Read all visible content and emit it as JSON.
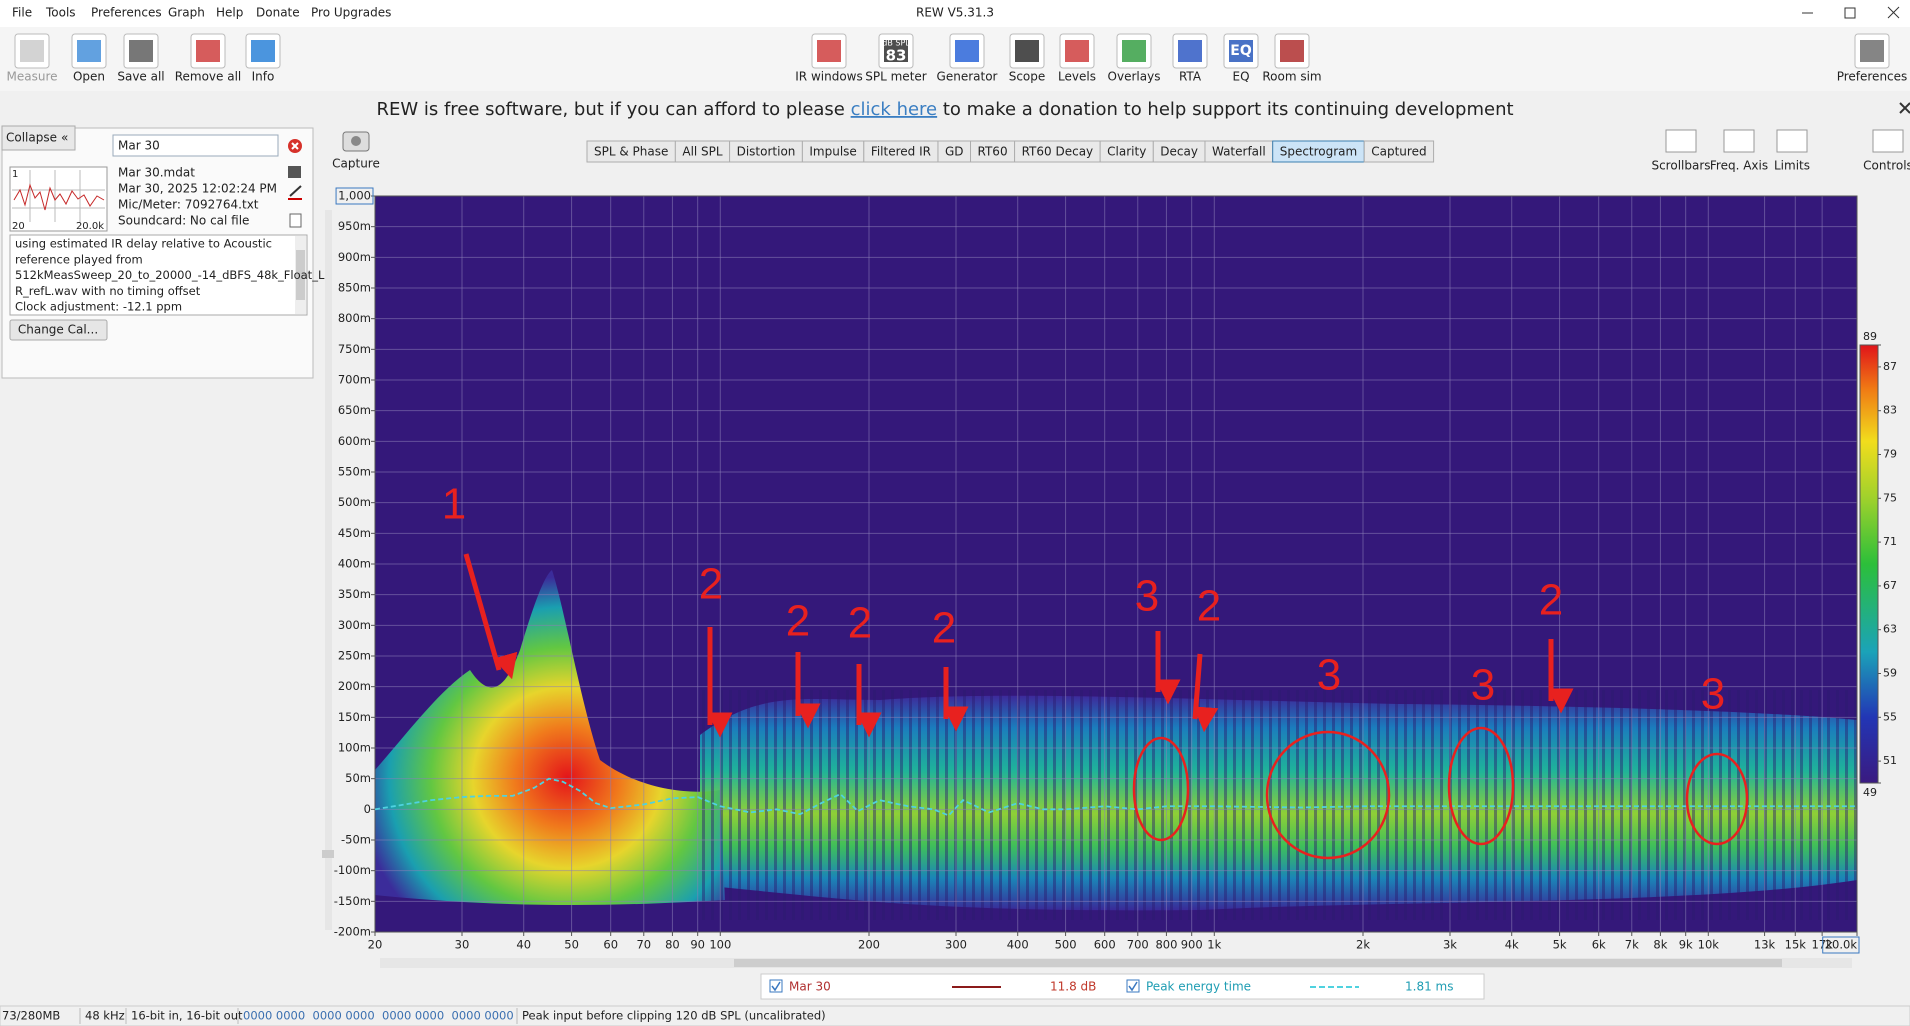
{
  "title_bar": {
    "title": "REW V5.31.3"
  },
  "menu": [
    "File",
    "Tools",
    "Preferences",
    "Graph",
    "Help",
    "Donate",
    "Pro Upgrades"
  ],
  "toolbar": {
    "left": [
      "Measure",
      "Open",
      "Save all",
      "Remove all",
      "Info"
    ],
    "center": [
      "IR windows",
      "SPL meter",
      "Generator",
      "Scope",
      "Levels",
      "Overlays",
      "RTA",
      "EQ",
      "Room sim"
    ],
    "right": [
      "Preferences"
    ],
    "spl_icon_unit": "dB SPL",
    "spl_icon_value": "83",
    "eq_icon": "EQ"
  },
  "donation": {
    "before": "REW is free software, but if you can afford to please",
    "link": "click here",
    "after": "to make a donation to help support its continuing development"
  },
  "measurement_panel": {
    "collapse": "Collapse",
    "name": "Mar 30",
    "thumbnail_labels": [
      "1",
      "20",
      "20.0k"
    ],
    "info": [
      "Mar 30.mdat",
      "Mar 30, 2025 12:02:24 PM",
      "Mic/Meter: 7092764.txt",
      "Soundcard: No cal file"
    ],
    "notes": [
      "using estimated IR delay relative to Acoustic",
      "reference played from",
      "512kMeasSweep_20_to_20000_-14_dBFS_48k_Float_L",
      "R_refL.wav with no timing offset",
      "Clock adjustment: -12.1 ppm"
    ],
    "change_cal": "Change Cal..."
  },
  "graph_toolbar": {
    "capture": "Capture",
    "tabs": [
      "SPL & Phase",
      "All SPL",
      "Distortion",
      "Impulse",
      "Filtered IR",
      "GD",
      "RT60",
      "RT60 Decay",
      "Clarity",
      "Decay",
      "Waterfall",
      "Spectrogram",
      "Captured"
    ],
    "active_tab": "Spectrogram",
    "controls": [
      "Scrollbars",
      "Freq. Axis",
      "Limits",
      "Controls"
    ]
  },
  "chart_data": {
    "type": "spectrogram",
    "xscale": "log",
    "grid": true,
    "x": [
      20,
      23,
      26,
      30,
      34,
      38,
      42,
      45,
      48,
      52,
      56,
      60,
      65,
      70,
      80,
      90,
      100,
      115,
      130,
      145,
      160,
      175,
      190,
      210,
      240,
      270,
      290,
      310,
      350,
      400,
      450,
      500,
      600,
      700,
      800,
      1000,
      1500,
      2000,
      3000,
      5000,
      8000,
      10000,
      15000,
      20000
    ],
    "series": [
      {
        "name": "Peak energy time",
        "color": "#4fd2df",
        "values": [
          0,
          8,
          15,
          20,
          22,
          22,
          35,
          50,
          45,
          30,
          10,
          2,
          5,
          8,
          18,
          20,
          5,
          -5,
          0,
          -8,
          10,
          25,
          -3,
          15,
          5,
          0,
          -10,
          15,
          -5,
          10,
          0,
          0,
          5,
          0,
          5,
          5,
          3,
          5,
          5,
          5,
          5,
          5,
          5,
          5
        ]
      }
    ],
    "xlim": [
      20,
      20000
    ],
    "xticks": [
      20,
      30,
      40,
      50,
      60,
      70,
      80,
      90,
      100,
      200,
      300,
      400,
      500,
      600,
      700,
      800,
      900,
      {
        "value": 1000,
        "label": "1k"
      },
      {
        "value": 2000,
        "label": "2k"
      },
      {
        "value": 3000,
        "label": "3k"
      },
      {
        "value": 4000,
        "label": "4k"
      },
      {
        "value": 5000,
        "label": "5k"
      },
      {
        "value": 6000,
        "label": "6k"
      },
      {
        "value": 7000,
        "label": "7k"
      },
      {
        "value": 8000,
        "label": "8k"
      },
      {
        "value": 9000,
        "label": "9k"
      },
      {
        "value": 10000,
        "label": "10k"
      },
      {
        "value": 13000,
        "label": "13k"
      },
      {
        "value": 15000,
        "label": "15k"
      },
      {
        "value": 17000,
        "label": "17k"
      },
      {
        "value": 20000,
        "label": "20.0k"
      }
    ],
    "ylim": [
      -200,
      1000
    ],
    "yticks": [
      {
        "value": 1000,
        "label": "1,000"
      },
      {
        "value": 950,
        "label": "950m"
      },
      {
        "value": 900,
        "label": "900m"
      },
      {
        "value": 850,
        "label": "850m"
      },
      {
        "value": 800,
        "label": "800m"
      },
      {
        "value": 750,
        "label": "750m"
      },
      {
        "value": 700,
        "label": "700m"
      },
      {
        "value": 650,
        "label": "650m"
      },
      {
        "value": 600,
        "label": "600m"
      },
      {
        "value": 550,
        "label": "550m"
      },
      {
        "value": 500,
        "label": "500m"
      },
      {
        "value": 450,
        "label": "450m"
      },
      {
        "value": 400,
        "label": "400m"
      },
      {
        "value": 350,
        "label": "350m"
      },
      {
        "value": 300,
        "label": "300m"
      },
      {
        "value": 250,
        "label": "250m"
      },
      {
        "value": 200,
        "label": "200m"
      },
      {
        "value": 150,
        "label": "150m"
      },
      {
        "value": 100,
        "label": "100m"
      },
      {
        "value": 50,
        "label": "50m"
      },
      0,
      {
        "value": -50,
        "label": "-50m"
      },
      {
        "value": -100,
        "label": "-100m"
      },
      {
        "value": -150,
        "label": "-150m"
      },
      {
        "value": -200,
        "label": "-200m"
      }
    ],
    "clim": [
      49,
      89
    ],
    "cticks": [
      89,
      87,
      83,
      79,
      75,
      71,
      67,
      63,
      59,
      55,
      51,
      49
    ],
    "annotations": [
      "1",
      "2",
      "2",
      "2",
      "2",
      "3",
      "2",
      "3",
      "3",
      "2",
      "3"
    ]
  },
  "legend": {
    "mar30_value": "11.8 dB",
    "peak_value": "1.81 ms"
  },
  "status_bar": [
    "73/280MB",
    "48 kHz",
    "16-bit in, 16-bit out",
    "0000 0000  0000 0000  0000 0000  0000 0000",
    "Peak input before clipping 120 dB SPL (uncalibrated)"
  ]
}
